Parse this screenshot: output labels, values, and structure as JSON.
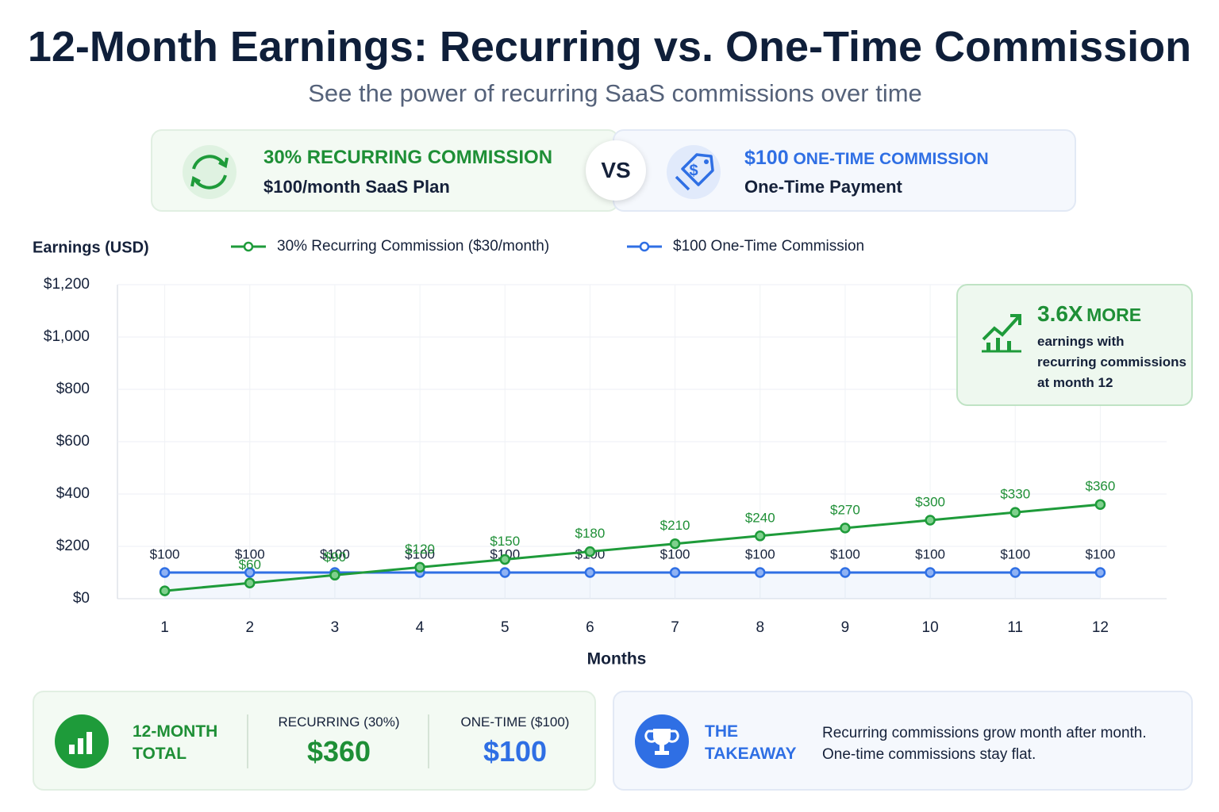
{
  "header": {
    "title": "12-Month Earnings: Recurring vs. One-Time Commission",
    "subtitle": "See the power of recurring SaaS commissions over time"
  },
  "compare": {
    "left": {
      "title": "30% RECURRING COMMISSION",
      "subtitle": "$100/month SaaS Plan"
    },
    "vs": "VS",
    "right": {
      "title_amount": "$100",
      "title": "ONE-TIME COMMISSION",
      "subtitle": "One-Time Payment"
    }
  },
  "chart_data": {
    "type": "line",
    "y_label": "Earnings (USD)",
    "x_label": "Months",
    "categories": [
      "1",
      "2",
      "3",
      "4",
      "5",
      "6",
      "7",
      "8",
      "9",
      "10",
      "11",
      "12"
    ],
    "series": [
      {
        "name": "30% Recurring Commission ($30/month)",
        "color": "#1e9b3a",
        "values": [
          30,
          60,
          90,
          120,
          150,
          180,
          210,
          240,
          270,
          300,
          330,
          360
        ],
        "value_labels": [
          null,
          "$60",
          "$90",
          "$120",
          "$150",
          "$180",
          "$210",
          "$240",
          "$270",
          "$300",
          "$330",
          "$360"
        ]
      },
      {
        "name": "$100 One-Time Commission",
        "color": "#2f6fe4",
        "values": [
          100,
          100,
          100,
          100,
          100,
          100,
          100,
          100,
          100,
          100,
          100,
          100
        ],
        "value_labels": [
          "$100",
          "$100",
          "$100",
          "$100",
          "$100",
          "$100",
          "$100",
          "$100",
          "$100",
          "$100",
          "$100",
          "$100"
        ]
      }
    ],
    "ylim": [
      0,
      1200
    ],
    "yticks": [
      {
        "value": 0,
        "label": "$0"
      },
      {
        "value": 200,
        "label": "$200"
      },
      {
        "value": 400,
        "label": "$400"
      },
      {
        "value": 600,
        "label": "$600"
      },
      {
        "value": 800,
        "label": "$800"
      },
      {
        "value": 1000,
        "label": "$1,000"
      },
      {
        "value": 1200,
        "label": "$1,200"
      }
    ],
    "grid": true,
    "legend": "top"
  },
  "insight": {
    "headline": "3.6X",
    "headline_rest": "MORE",
    "lines": [
      "earnings with",
      "recurring commissions",
      "at month 12"
    ]
  },
  "totals": {
    "title": [
      "12-MONTH",
      "TOTAL"
    ],
    "recurring_label": "RECURRING (30%)",
    "recurring_value": "$360",
    "onetime_label": "ONE-TIME ($100)",
    "onetime_value": "$100"
  },
  "takeaway": {
    "title": [
      "THE",
      "TAKEAWAY"
    ],
    "lines": [
      "Recurring commissions grow month after month.",
      "One-time commissions stay flat."
    ]
  }
}
